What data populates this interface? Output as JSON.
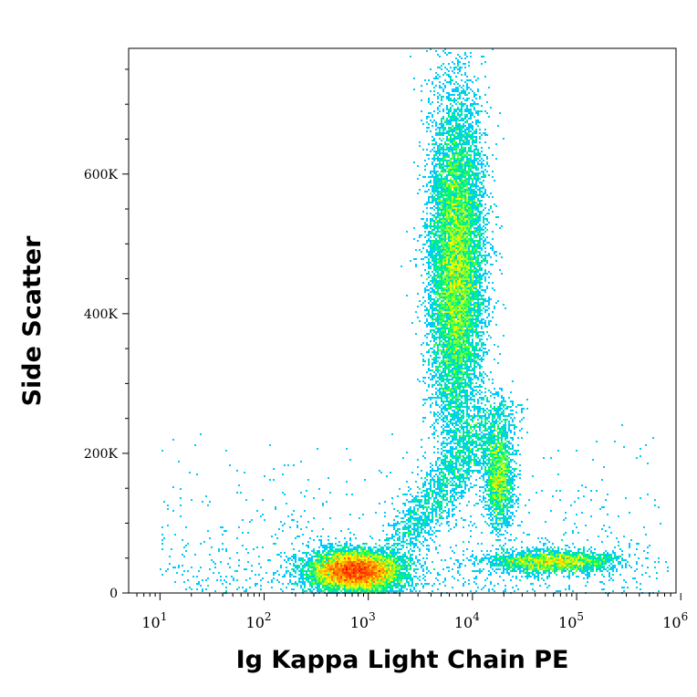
{
  "chart_data": {
    "type": "scatter",
    "plot_style": "flow cytometry density dot plot (pseudocolor)",
    "title": "",
    "xlabel": "Ig Kappa Light Chain PE",
    "ylabel": "Side Scatter",
    "x_scale": "log",
    "x_range": [
      5,
      900000
    ],
    "y_scale": "linear",
    "y_range": [
      0,
      780000
    ],
    "x_ticks": [
      {
        "value": 10,
        "base": "10",
        "exp": "1"
      },
      {
        "value": 100,
        "base": "10",
        "exp": "2"
      },
      {
        "value": 1000,
        "base": "10",
        "exp": "3"
      },
      {
        "value": 10000,
        "base": "10",
        "exp": "4"
      },
      {
        "value": 100000,
        "base": "10",
        "exp": "5"
      },
      {
        "value": 1000000,
        "base": "10",
        "exp": "6"
      }
    ],
    "y_ticks": [
      {
        "value": 0,
        "label": "0"
      },
      {
        "value": 200000,
        "label": "200K"
      },
      {
        "value": 400000,
        "label": "400K"
      },
      {
        "value": 600000,
        "label": "600K"
      }
    ],
    "grid": false,
    "legend": "none",
    "density_colormap": [
      "#0000ff",
      "#00c8ff",
      "#00ff60",
      "#ffff00",
      "#ff8000",
      "#ff0000"
    ],
    "populations": [
      {
        "x_center": 750,
        "y_center": 32000,
        "x_log_spread": 0.22,
        "y_spread": 14000,
        "relative_size": 0.3,
        "peak_color": "#ff0000"
      },
      {
        "x_center": 7000,
        "y_center": 470000,
        "x_log_spread": 0.13,
        "y_spread": 120000,
        "relative_size": 0.38,
        "peak_color": "#a0ff00"
      },
      {
        "x_center": 18000,
        "y_center": 165000,
        "x_log_spread": 0.07,
        "y_spread": 35000,
        "relative_size": 0.06,
        "peak_color": "#00ff60"
      },
      {
        "x_center": 60000,
        "y_center": 45000,
        "x_log_spread": 0.3,
        "y_spread": 8000,
        "relative_size": 0.08,
        "peak_color": "#00c8ff"
      }
    ]
  }
}
